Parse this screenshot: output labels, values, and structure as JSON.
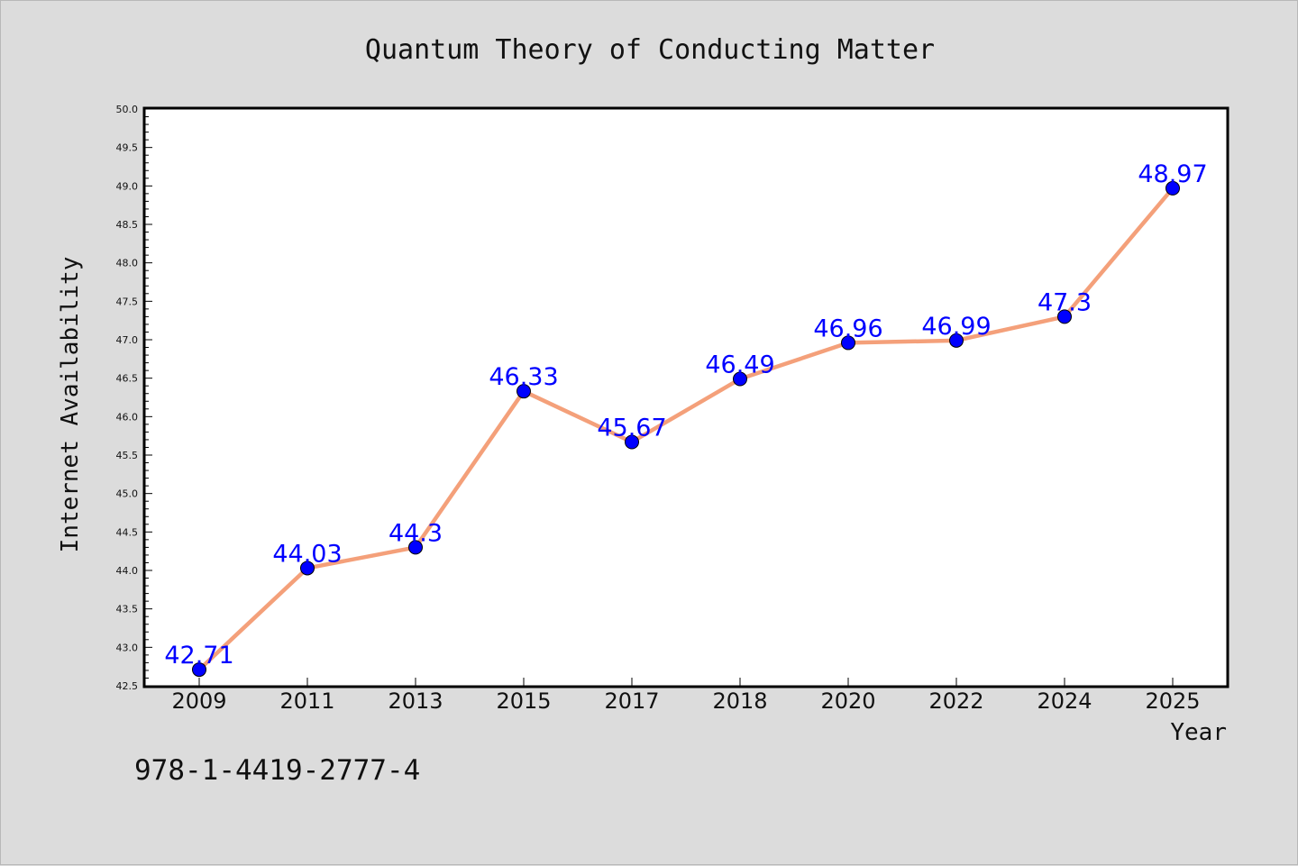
{
  "chart_data": {
    "type": "line",
    "title": "Quantum Theory of Conducting Matter",
    "xlabel": "Year",
    "ylabel": "Internet Availability",
    "categories": [
      "2009",
      "2011",
      "2013",
      "2015",
      "2017",
      "2018",
      "2020",
      "2022",
      "2024",
      "2025"
    ],
    "series": [
      {
        "values": [
          42.71,
          44.03,
          44.3,
          46.33,
          45.67,
          46.49,
          46.96,
          46.99,
          47.3,
          48.97
        ]
      }
    ],
    "data_labels": [
      "42.71",
      "44.03",
      "44.3",
      "46.33",
      "45.67",
      "46.49",
      "46.96",
      "46.99",
      "47.3",
      "48.97"
    ],
    "ylim": [
      42.5,
      50.0
    ],
    "yticks": [
      "42.5",
      "43.0",
      "43.5",
      "44.0",
      "44.5",
      "45.0",
      "45.5",
      "46.0",
      "46.5",
      "47.0",
      "47.5",
      "48.0",
      "48.5",
      "49.0",
      "49.5",
      "50.0"
    ],
    "grid": false,
    "colors": {
      "line": "#f4a07a",
      "marker": "#0000ff",
      "label": "#0000ff",
      "background": "#dcdcdc",
      "plot_background": "#ffffff"
    }
  },
  "footer": {
    "isbn": "978-1-4419-2777-4"
  }
}
